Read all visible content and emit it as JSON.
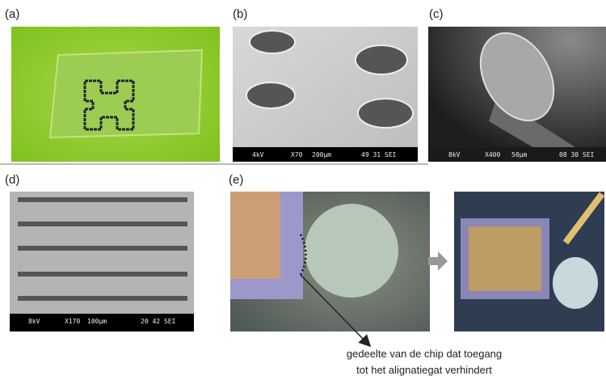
{
  "panels": [
    {
      "label": "(a)"
    },
    {
      "label": "(b)",
      "info": [
        "4kV",
        "X70",
        "200μm",
        "49 31 SEI"
      ]
    },
    {
      "label": "(c)",
      "info": [
        "8kV",
        "X400",
        "50μm",
        "08 30 SEI"
      ]
    },
    {
      "label": "(d)",
      "info": [
        "8kV",
        "X170",
        "100μm",
        "20 42 SEI"
      ]
    },
    {
      "label": "(e)"
    }
  ],
  "caption": [
    "gedeelte van de chip dat toegang",
    "tot het alignatiegat verhindert"
  ]
}
